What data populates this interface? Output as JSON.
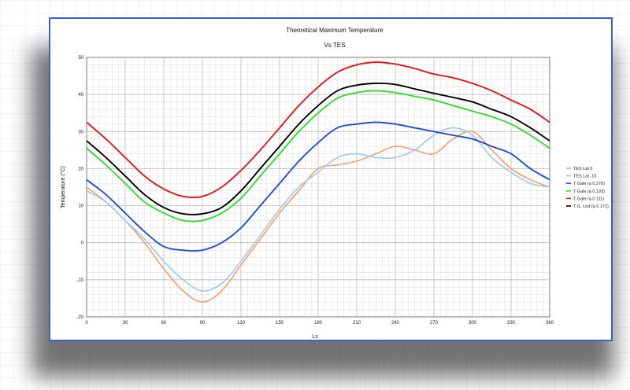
{
  "chart_data": {
    "type": "line",
    "title": "Theoretical Maximum Temperature",
    "subtitle": "Vs TES",
    "xlabel": "Ls",
    "ylabel": "Temperature (°C)",
    "xlim": [
      0,
      360
    ],
    "ylim": [
      -20,
      50
    ],
    "xticks": [
      0,
      30,
      60,
      90,
      120,
      150,
      180,
      210,
      240,
      270,
      300,
      330,
      360
    ],
    "yticks": [
      -20,
      -10,
      0,
      10,
      20,
      30,
      40,
      50
    ],
    "grid": true,
    "legend_position": "right",
    "series": [
      {
        "name": "TES Lat 0",
        "color": "#f0a070",
        "x": [
          0,
          15,
          30,
          45,
          60,
          75,
          90,
          105,
          120,
          135,
          150,
          165,
          180,
          195,
          210,
          225,
          240,
          255,
          270,
          285,
          300,
          315,
          330,
          345,
          360
        ],
        "y": [
          15,
          11,
          6,
          0,
          -7,
          -13,
          -16,
          -13,
          -6,
          1,
          8,
          14,
          20,
          21,
          22,
          24,
          26,
          25,
          24,
          28,
          30,
          25,
          20,
          17,
          15
        ]
      },
      {
        "name": "TES Lat -10",
        "color": "#9fc9ec",
        "x": [
          0,
          15,
          30,
          45,
          60,
          75,
          90,
          105,
          120,
          135,
          150,
          165,
          180,
          195,
          210,
          225,
          240,
          255,
          270,
          285,
          300,
          315,
          330,
          345,
          360
        ],
        "y": [
          14,
          11,
          6,
          1,
          -5,
          -10,
          -13,
          -11,
          -5,
          2,
          9,
          15,
          19,
          23,
          24,
          23,
          23,
          25,
          29,
          31,
          29,
          23,
          19,
          16,
          15
        ]
      },
      {
        "name": "T Gale (a 0.278)",
        "color": "#1f4fd6",
        "x": [
          0,
          15,
          30,
          45,
          60,
          75,
          90,
          105,
          120,
          135,
          150,
          165,
          180,
          195,
          210,
          225,
          240,
          255,
          270,
          285,
          300,
          315,
          330,
          345,
          360
        ],
        "y": [
          17,
          13,
          8,
          3,
          -1,
          -2,
          -2,
          0,
          4,
          10,
          16,
          22,
          27,
          31,
          32,
          32.5,
          32,
          31,
          30,
          29,
          28,
          26,
          24,
          20,
          17
        ]
      },
      {
        "name": "T Gale (a 0.193)",
        "color": "#33dd33",
        "x": [
          0,
          15,
          30,
          45,
          60,
          75,
          90,
          105,
          120,
          135,
          150,
          165,
          180,
          195,
          210,
          225,
          240,
          255,
          270,
          285,
          300,
          315,
          330,
          345,
          360
        ],
        "y": [
          25.5,
          21,
          16,
          11,
          8,
          6,
          6,
          8,
          12,
          18,
          24,
          30,
          35,
          39,
          40.5,
          41,
          40.5,
          39.5,
          38.5,
          37,
          35.5,
          34,
          32,
          29,
          25.5
        ]
      },
      {
        "name": "T Gale (a 0.111)",
        "color": "#dd1a1a",
        "x": [
          0,
          15,
          30,
          45,
          60,
          75,
          90,
          105,
          120,
          135,
          150,
          165,
          180,
          195,
          210,
          225,
          240,
          255,
          270,
          285,
          300,
          315,
          330,
          345,
          360
        ],
        "y": [
          32.5,
          28,
          23,
          18,
          14.5,
          12.5,
          12.5,
          15,
          19.5,
          25,
          31,
          37,
          42,
          46,
          48,
          48.7,
          48.2,
          47,
          45.5,
          44.5,
          43,
          41,
          38.5,
          36,
          32.5
        ]
      },
      {
        "name": "T G. Lnd (a 0.171)",
        "color": "#000000",
        "x": [
          0,
          15,
          30,
          45,
          60,
          75,
          90,
          105,
          120,
          135,
          150,
          165,
          180,
          195,
          210,
          225,
          240,
          255,
          270,
          285,
          300,
          315,
          330,
          345,
          360
        ],
        "y": [
          27.5,
          23,
          18,
          13,
          9.5,
          7.8,
          7.8,
          9.5,
          14,
          20,
          26,
          32,
          37,
          41,
          42.5,
          43,
          42.7,
          41.5,
          40.3,
          39.2,
          38,
          36,
          34,
          31,
          27.5
        ]
      }
    ]
  }
}
